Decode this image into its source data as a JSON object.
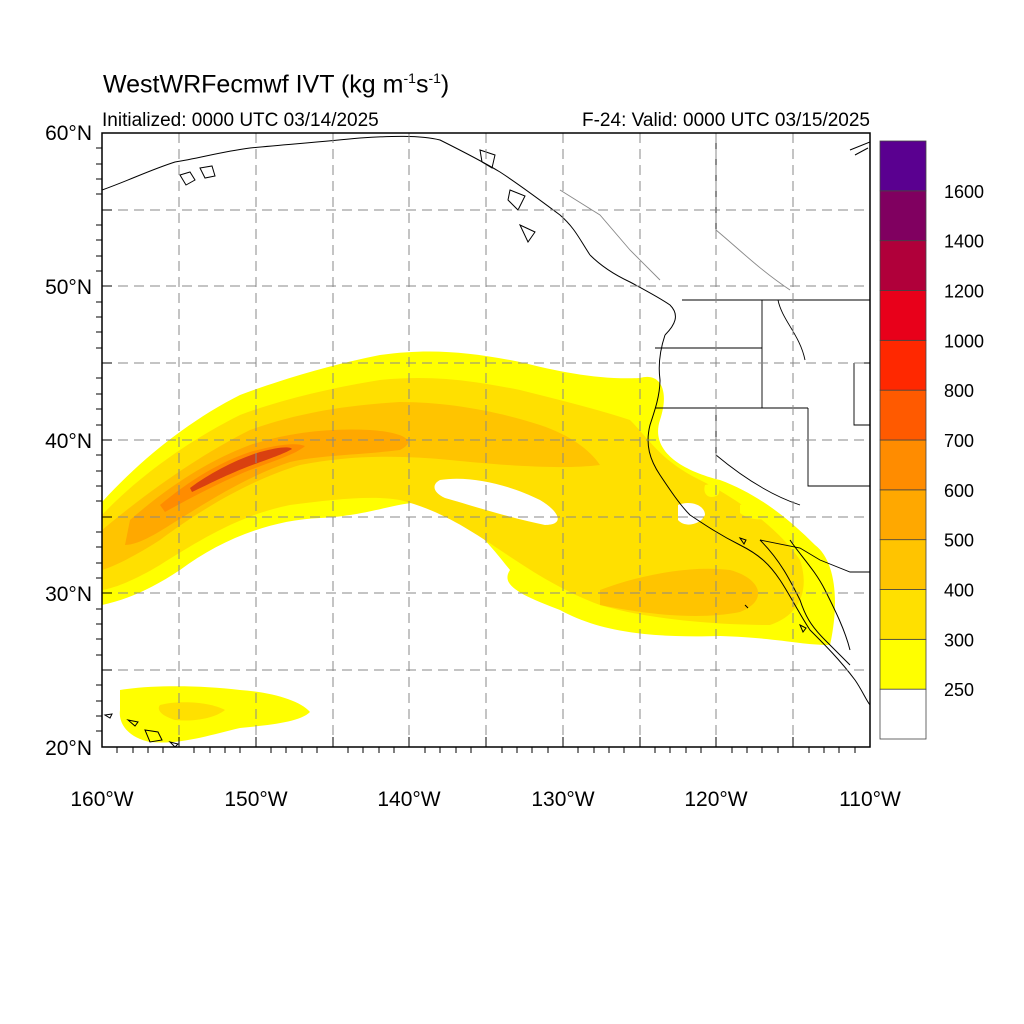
{
  "title": {
    "text": "WestWRFecmwf IVT (kg m",
    "sup1": "-1",
    "mid": "s",
    "sup2": "-1",
    "end": ")"
  },
  "init_text": "Initialized: 0000 UTC 03/14/2025",
  "valid_text": "F-24: Valid: 0000 UTC 03/15/2025",
  "lat_labels": [
    "60°N",
    "50°N",
    "40°N",
    "30°N",
    "20°N"
  ],
  "lon_labels": [
    "160°W",
    "150°W",
    "140°W",
    "130°W",
    "120°W",
    "110°W"
  ],
  "colorbar": {
    "levels": [
      "250",
      "300",
      "400",
      "500",
      "600",
      "700",
      "800",
      "1000",
      "1200",
      "1400",
      "1600"
    ],
    "colors": [
      "#ffffff",
      "#ffff00",
      "#ffe000",
      "#ffc400",
      "#ffa800",
      "#ff8c00",
      "#ff5a00",
      "#ff2800",
      "#e8001a",
      "#b0003a",
      "#800060",
      "#5a0090"
    ]
  },
  "map": {
    "lon_range": [
      -160,
      -110
    ],
    "lat_range": [
      20,
      60
    ],
    "grid": "dashed",
    "river_core_color": "#d94010"
  }
}
